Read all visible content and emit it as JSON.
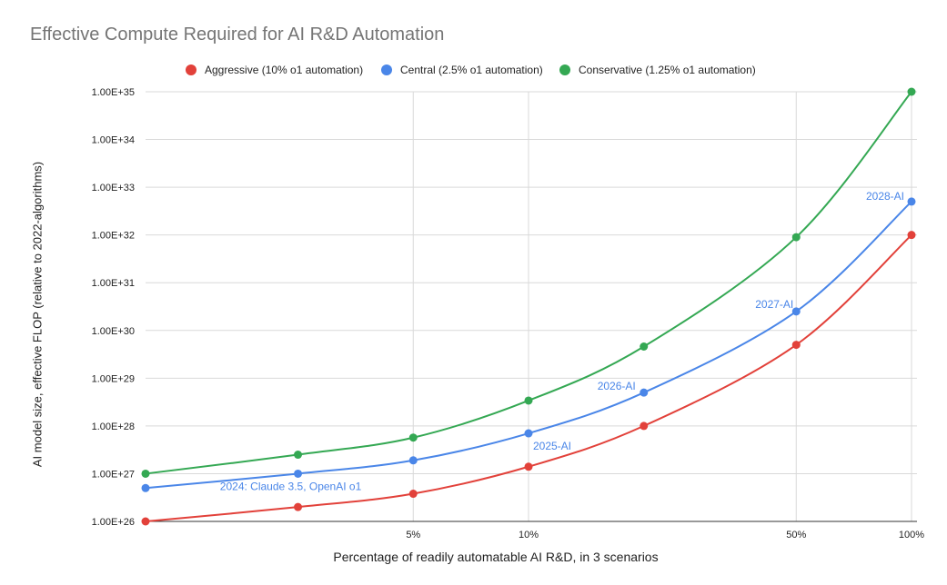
{
  "chart_data": {
    "type": "line",
    "title": "Effective Compute Required for AI R&D Automation",
    "xlabel": "Percentage of readily automatable AI R&D, in 3 scenarios",
    "ylabel": "AI model size, effective FLOP (relative to 2022-algorithms)",
    "xscale": "log",
    "yscale": "log",
    "xlim": [
      1.0,
      100
    ],
    "ylim": [
      1e+26,
      1e+35
    ],
    "grid": true,
    "legend_position": "top",
    "x_tick_labels": [
      "5%",
      "10%",
      "50%",
      "100%"
    ],
    "x_tick_values": [
      5,
      10,
      50,
      100
    ],
    "y_tick_labels": [
      "1.00E+26",
      "1.00E+27",
      "1.00E+28",
      "1.00E+29",
      "1.00E+30",
      "1.00E+31",
      "1.00E+32",
      "1.00E+33",
      "1.00E+34",
      "1.00E+35"
    ],
    "y_tick_exponents": [
      26,
      27,
      28,
      29,
      30,
      31,
      32,
      33,
      34,
      35
    ],
    "series": [
      {
        "name": "Aggressive (10% o1 automation)",
        "color": "#e2413a",
        "x": [
          1.0,
          2.5,
          5,
          10,
          20,
          50,
          100
        ],
        "y": [
          1e+26,
          2e+26,
          3.8e+26,
          1.4e+27,
          1e+28,
          5e+29,
          1e+32
        ]
      },
      {
        "name": "Central (2.5% o1 automation)",
        "color": "#4a86e8",
        "x": [
          1.0,
          2.5,
          5,
          10,
          20,
          50,
          100
        ],
        "y": [
          5e+26,
          1e+27,
          1.9e+27,
          7e+27,
          5e+28,
          2.5e+30,
          5e+32
        ]
      },
      {
        "name": "Conservative (1.25% o1 automation)",
        "color": "#34a853",
        "x": [
          1.0,
          2.5,
          5,
          10,
          20,
          50,
          100
        ],
        "y": [
          1e+27,
          2.5e+27,
          5.7e+27,
          3.4e+28,
          4.6e+29,
          9e+31,
          1e+35
        ]
      }
    ],
    "annotations": [
      {
        "text": "2024: Claude 3.5, OpenAI o1",
        "x": 2.5,
        "y": 1e+27,
        "color": "#4a86e8"
      },
      {
        "text": "2025-AI",
        "x": 10,
        "y": 7e+27,
        "color": "#4a86e8"
      },
      {
        "text": "2026-AI",
        "x": 20,
        "y": 5e+28,
        "color": "#4a86e8"
      },
      {
        "text": "2027-AI",
        "x": 50,
        "y": 2.5e+30,
        "color": "#4a86e8"
      },
      {
        "text": "2028-AI",
        "x": 100,
        "y": 5e+32,
        "color": "#4a86e8"
      }
    ]
  }
}
